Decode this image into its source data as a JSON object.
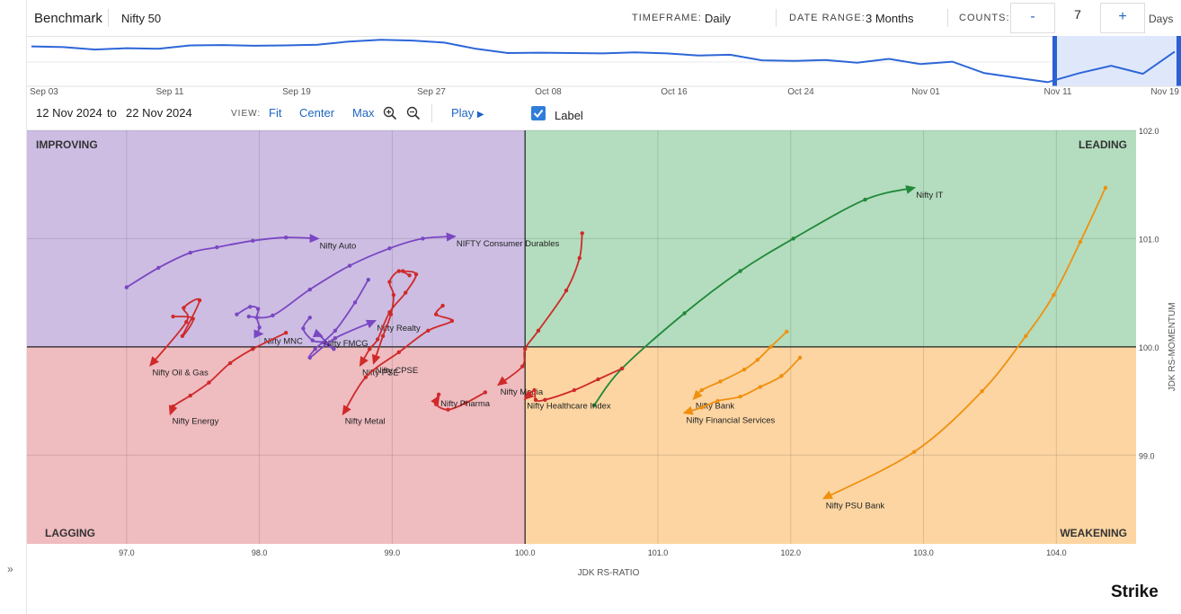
{
  "header": {
    "benchmark_label": "Benchmark",
    "benchmark_value": "Nifty 50",
    "timeframe_label": "TIMEFRAME:",
    "timeframe_value": "Daily",
    "date_range_label": "DATE RANGE:",
    "date_range_value": "3 Months",
    "counts_label": "COUNTS:",
    "counts_minus": "-",
    "counts_value": "7",
    "counts_plus": "+",
    "counts_unit": "Days"
  },
  "navigator": {
    "dates": [
      "Sep 03",
      "Sep 11",
      "Sep 19",
      "Sep 27",
      "Oct 08",
      "Oct 16",
      "Oct 24",
      "Nov 01",
      "Nov 11",
      "Nov 19"
    ],
    "values": [
      101.5,
      101.3,
      100.6,
      101.0,
      100.8,
      101.8,
      101.9,
      101.7,
      101.8,
      102.0,
      102.9,
      103.4,
      103.2,
      102.6,
      100.8,
      99.6,
      99.7,
      99.6,
      99.5,
      99.8,
      99.5,
      98.9,
      99.1,
      97.5,
      97.3,
      97.6,
      96.8,
      97.9,
      96.4,
      97.1,
      93.8,
      92.5,
      91.2,
      93.8,
      95.9,
      93.6,
      100.0
    ]
  },
  "controls": {
    "date_from": "12 Nov 2024",
    "to": "to",
    "date_to": "22 Nov 2024",
    "view_label": "VIEW:",
    "fit": "Fit",
    "center": "Center",
    "max": "Max",
    "zoom_in": "zoom-in-icon",
    "zoom_out": "zoom-out-icon",
    "play": "Play",
    "label_toggle": "Label",
    "label_checked": true
  },
  "chart_data": {
    "type": "scatter",
    "xlabel": "JDK RS-RATIO",
    "ylabel": "JDK RS-MOMENTUM",
    "xlim": [
      96.25,
      104.6
    ],
    "ylim": [
      98.18,
      102.0
    ],
    "xticks": [
      "97.0",
      "98.0",
      "99.0",
      "100.0",
      "101.0",
      "102.0",
      "103.0",
      "104.0"
    ],
    "yticks": [
      "99.0",
      "100.0",
      "101.0",
      "102.0"
    ],
    "quadrants": {
      "top_left": "IMPROVING",
      "top_right": "LEADING",
      "bottom_left": "LAGGING",
      "bottom_right": "WEAKENING"
    },
    "colors": {
      "improving": "#7a47c2",
      "leading": "#22893a",
      "lagging": "#cf2a2a",
      "weakening": "#f0900f",
      "improving_bg": "#cdbde3",
      "leading_bg": "#b3ddbe",
      "lagging_bg": "#efbcc0",
      "weakening_bg": "#fcd5a2"
    },
    "series": [
      {
        "name": "Nifty Auto",
        "quadrant": "improving",
        "points": [
          [
            97.0,
            100.55
          ],
          [
            97.24,
            100.73
          ],
          [
            97.48,
            100.87
          ],
          [
            97.68,
            100.92
          ],
          [
            97.95,
            100.98
          ],
          [
            98.2,
            101.01
          ],
          [
            98.44,
            101.0
          ]
        ]
      },
      {
        "name": "NIFTY Consumer Durables",
        "quadrant": "improving",
        "points": [
          [
            97.92,
            100.28
          ],
          [
            98.1,
            100.29
          ],
          [
            98.38,
            100.53
          ],
          [
            98.68,
            100.75
          ],
          [
            98.98,
            100.91
          ],
          [
            99.23,
            101.0
          ],
          [
            99.47,
            101.02
          ]
        ]
      },
      {
        "name": "Nifty MNC",
        "quadrant": "improving",
        "points": [
          [
            97.83,
            100.3
          ],
          [
            97.93,
            100.37
          ],
          [
            97.99,
            100.35
          ],
          [
            97.98,
            100.27
          ],
          [
            98.0,
            100.18
          ],
          [
            97.98,
            100.12
          ],
          [
            98.02,
            100.12
          ]
        ]
      },
      {
        "name": "Nifty FMCG",
        "quadrant": "improving",
        "points": [
          [
            98.38,
            100.27
          ],
          [
            98.33,
            100.17
          ],
          [
            98.4,
            100.06
          ],
          [
            98.48,
            100.04
          ],
          [
            98.56,
            99.98
          ],
          [
            98.45,
            100.11
          ],
          [
            98.47,
            100.1
          ]
        ]
      },
      {
        "name": "Nifty Realty",
        "quadrant": "improving",
        "points": [
          [
            98.82,
            100.62
          ],
          [
            98.72,
            100.41
          ],
          [
            98.57,
            100.15
          ],
          [
            98.42,
            99.98
          ],
          [
            98.38,
            99.9
          ],
          [
            98.57,
            100.08
          ],
          [
            98.87,
            100.24
          ]
        ]
      },
      {
        "name": "Nifty IT",
        "quadrant": "leading",
        "points": [
          [
            100.52,
            99.46
          ],
          [
            100.73,
            99.8
          ],
          [
            101.2,
            100.31
          ],
          [
            101.62,
            100.7
          ],
          [
            102.02,
            101.0
          ],
          [
            102.56,
            101.36
          ],
          [
            102.93,
            101.47
          ]
        ]
      },
      {
        "name": "Nifty Oil & Gas",
        "quadrant": "lagging",
        "points": [
          [
            97.35,
            100.28
          ],
          [
            97.5,
            100.26
          ],
          [
            97.42,
            100.1
          ],
          [
            97.55,
            100.43
          ],
          [
            97.43,
            100.36
          ],
          [
            97.45,
            100.23
          ],
          [
            97.18,
            99.83
          ]
        ]
      },
      {
        "name": "Nifty Energy",
        "quadrant": "lagging",
        "points": [
          [
            98.2,
            100.13
          ],
          [
            97.95,
            99.98
          ],
          [
            97.78,
            99.85
          ],
          [
            97.62,
            99.67
          ],
          [
            97.48,
            99.55
          ],
          [
            97.35,
            99.45
          ],
          [
            97.33,
            99.38
          ]
        ]
      },
      {
        "name": "Nifty PSE",
        "quadrant": "lagging",
        "points": [
          [
            99.08,
            100.7
          ],
          [
            99.18,
            100.67
          ],
          [
            99.1,
            100.5
          ],
          [
            98.98,
            100.32
          ],
          [
            98.89,
            100.07
          ],
          [
            98.83,
            99.98
          ],
          [
            98.76,
            99.83
          ]
        ]
      },
      {
        "name": "Nifty CPSE",
        "quadrant": "lagging",
        "points": [
          [
            99.13,
            100.66
          ],
          [
            99.05,
            100.7
          ],
          [
            98.98,
            100.6
          ],
          [
            99.01,
            100.48
          ],
          [
            98.99,
            100.3
          ],
          [
            98.93,
            100.1
          ],
          [
            98.86,
            99.85
          ]
        ]
      },
      {
        "name": "Nifty Metal",
        "quadrant": "lagging",
        "points": [
          [
            99.38,
            100.38
          ],
          [
            99.33,
            100.3
          ],
          [
            99.45,
            100.24
          ],
          [
            99.27,
            100.15
          ],
          [
            99.05,
            99.95
          ],
          [
            98.8,
            99.72
          ],
          [
            98.63,
            99.38
          ]
        ]
      },
      {
        "name": "Nifty Pharma",
        "quadrant": "lagging",
        "points": [
          [
            99.7,
            99.58
          ],
          [
            99.55,
            99.48
          ],
          [
            99.42,
            99.42
          ],
          [
            99.33,
            99.47
          ],
          [
            99.35,
            99.56
          ],
          [
            99.33,
            99.5
          ],
          [
            99.35,
            99.54
          ]
        ]
      },
      {
        "name": "Nifty Media",
        "quadrant": "lagging",
        "points": [
          [
            100.43,
            101.05
          ],
          [
            100.41,
            100.82
          ],
          [
            100.31,
            100.52
          ],
          [
            100.1,
            100.15
          ],
          [
            100.0,
            99.98
          ],
          [
            99.98,
            99.82
          ],
          [
            99.8,
            99.65
          ]
        ]
      },
      {
        "name": "Nifty Healthcare Index",
        "quadrant": "lagging",
        "points": [
          [
            100.73,
            99.8
          ],
          [
            100.55,
            99.7
          ],
          [
            100.37,
            99.6
          ],
          [
            100.15,
            99.51
          ],
          [
            100.08,
            99.51
          ],
          [
            100.07,
            99.6
          ],
          [
            100.0,
            99.52
          ]
        ]
      },
      {
        "name": "Nifty Bank",
        "quadrant": "weakening",
        "points": [
          [
            101.97,
            100.14
          ],
          [
            101.85,
            100.0
          ],
          [
            101.75,
            99.88
          ],
          [
            101.65,
            99.79
          ],
          [
            101.47,
            99.68
          ],
          [
            101.33,
            99.6
          ],
          [
            101.27,
            99.52
          ]
        ]
      },
      {
        "name": "Nifty Financial Services",
        "quadrant": "weakening",
        "points": [
          [
            102.07,
            99.9
          ],
          [
            101.93,
            99.73
          ],
          [
            101.77,
            99.63
          ],
          [
            101.62,
            99.54
          ],
          [
            101.45,
            99.5
          ],
          [
            101.33,
            99.44
          ],
          [
            101.2,
            99.39
          ]
        ]
      },
      {
        "name": "Nifty PSU Bank",
        "quadrant": "weakening",
        "points": [
          [
            104.37,
            101.47
          ],
          [
            104.18,
            100.97
          ],
          [
            103.98,
            100.48
          ],
          [
            103.77,
            100.1
          ],
          [
            103.44,
            99.59
          ],
          [
            102.93,
            99.03
          ],
          [
            102.25,
            98.6
          ]
        ]
      }
    ]
  },
  "branding": {
    "text": "Strike"
  }
}
